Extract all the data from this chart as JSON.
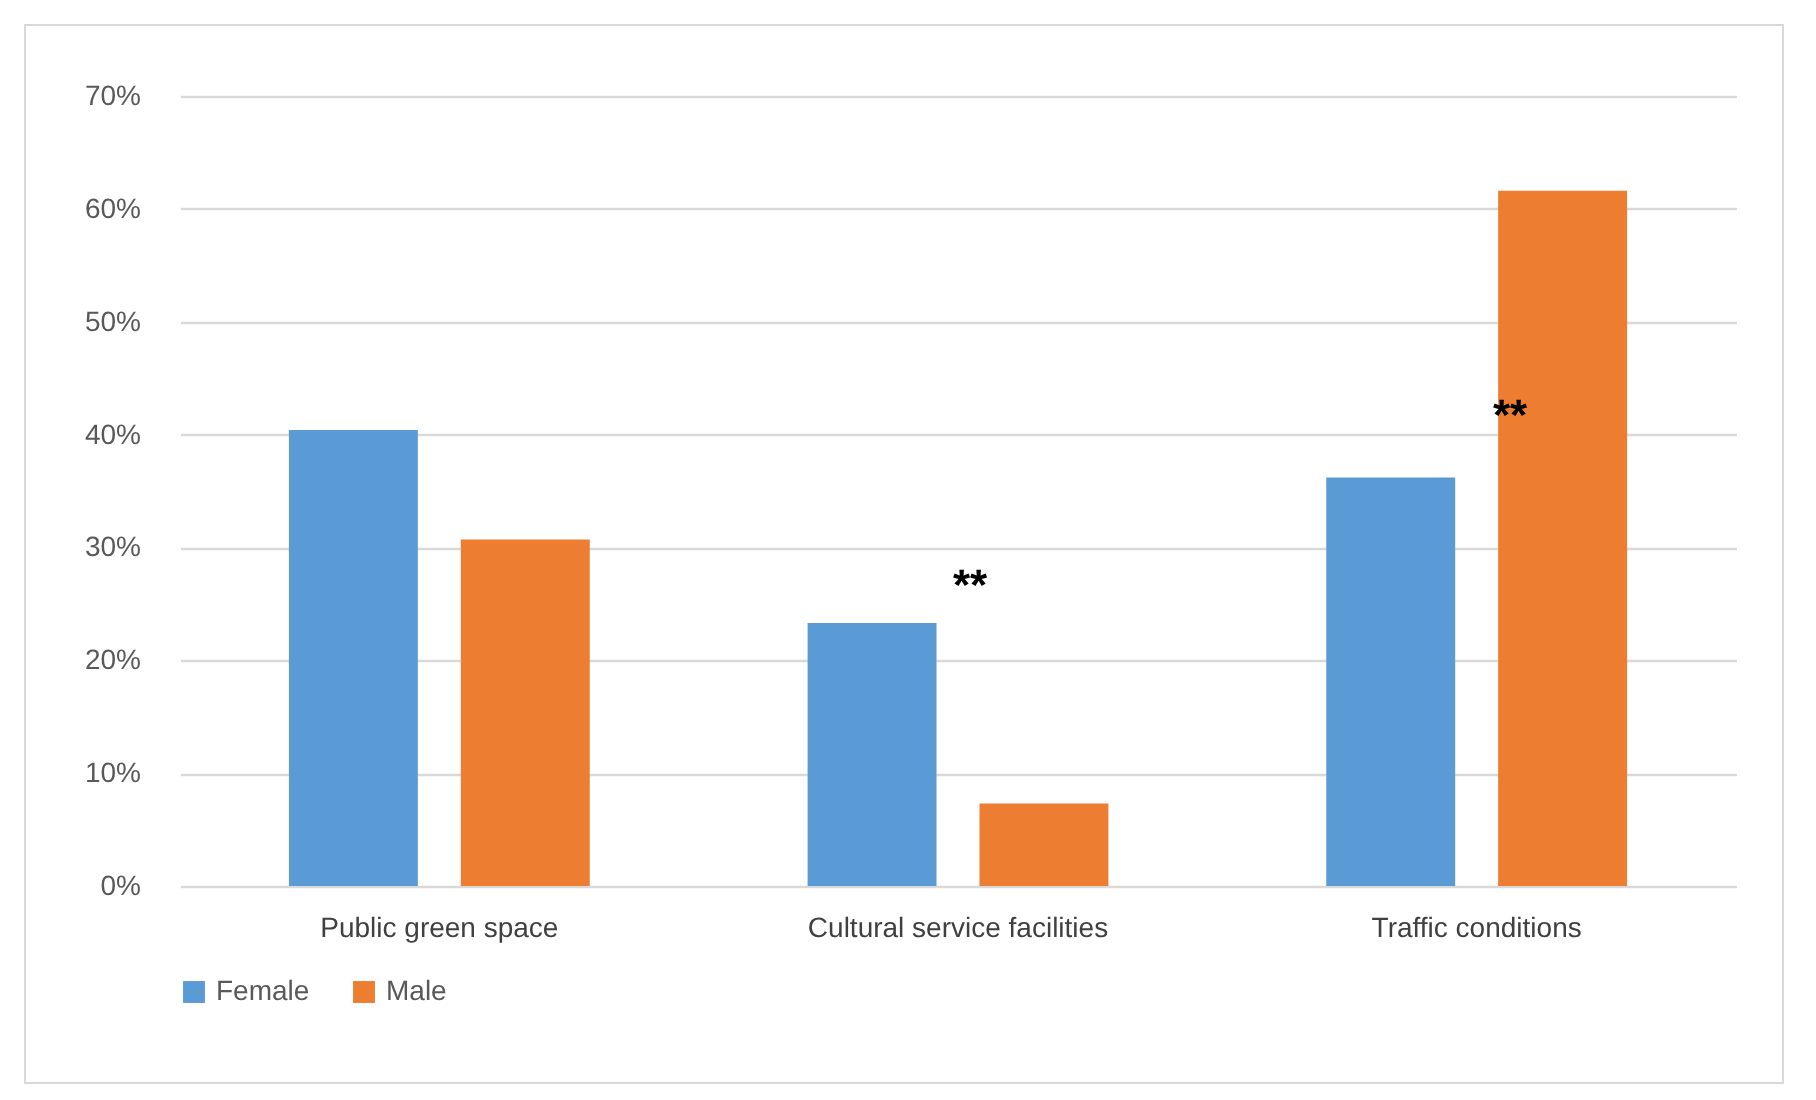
{
  "chart_data": {
    "type": "bar",
    "categories": [
      "Public green space",
      "Cultural service facilities",
      "Traffic conditions"
    ],
    "series": [
      {
        "name": "Female",
        "color": "#5b9bd5",
        "values": [
          40.4,
          23.3,
          36.2
        ]
      },
      {
        "name": "Male",
        "color": "#ed7d31",
        "values": [
          30.7,
          7.3,
          61.6
        ]
      }
    ],
    "ylim": [
      0,
      70
    ],
    "yticks": [
      {
        "value": 0,
        "label": "0%"
      },
      {
        "value": 10,
        "label": "10%"
      },
      {
        "value": 20,
        "label": "20%"
      },
      {
        "value": 30,
        "label": "30%"
      },
      {
        "value": 40,
        "label": "40%"
      },
      {
        "value": 50,
        "label": "50%"
      },
      {
        "value": 60,
        "label": "60%"
      },
      {
        "value": 70,
        "label": "70%"
      }
    ],
    "annotations": [
      "**",
      "**"
    ],
    "grid": "y",
    "legend": "bottom"
  }
}
